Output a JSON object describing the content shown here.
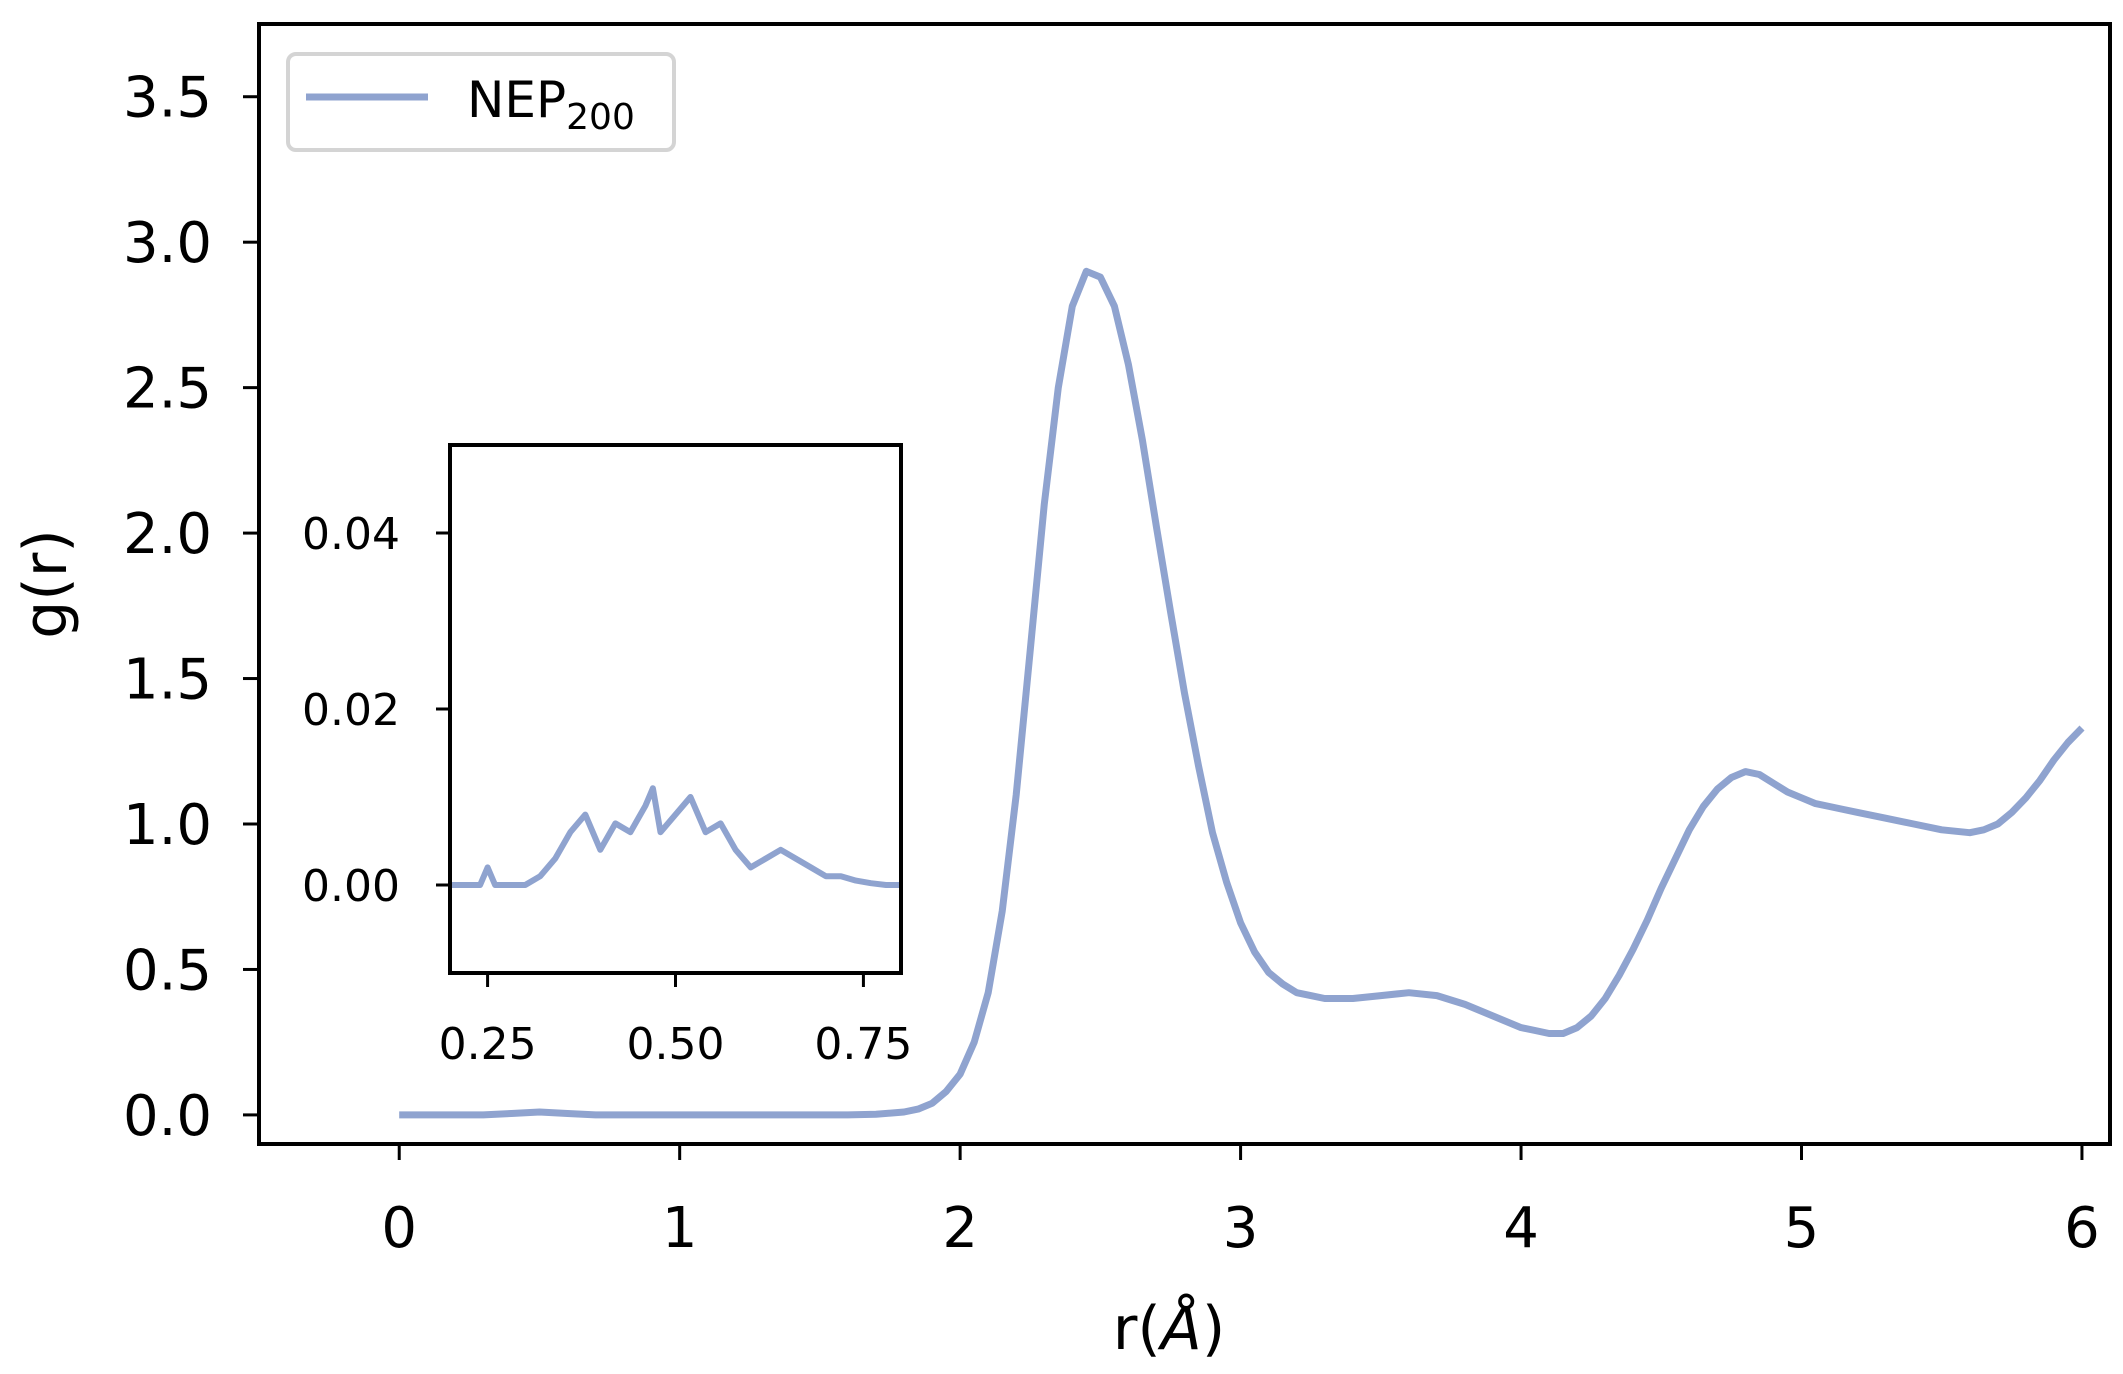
{
  "chart_data": [
    {
      "type": "line",
      "title": "",
      "xlabel_prefix": "r(",
      "xlabel_unit": "Å",
      "xlabel_suffix": ")",
      "ylabel": "g(r)",
      "xlim": [
        -0.5,
        6.1
      ],
      "ylim": [
        -0.1,
        3.75
      ],
      "xticks": [
        0,
        1,
        2,
        3,
        4,
        5,
        6
      ],
      "xtick_labels": [
        "0",
        "1",
        "2",
        "3",
        "4",
        "5",
        "6"
      ],
      "yticks": [
        0.0,
        0.5,
        1.0,
        1.5,
        2.0,
        2.5,
        3.0,
        3.5
      ],
      "ytick_labels": [
        "0.0",
        "0.5",
        "1.0",
        "1.5",
        "2.0",
        "2.5",
        "3.0",
        "3.5"
      ],
      "grid": false,
      "legend": {
        "position": "top-left",
        "entries": [
          {
            "name_main": "NEP",
            "name_sub": "200",
            "color": "#8fa3cf"
          }
        ]
      },
      "series": [
        {
          "name": "NEP200",
          "color": "#8fa3cf",
          "x": [
            0,
            0.1,
            0.2,
            0.3,
            0.4,
            0.5,
            0.6,
            0.7,
            0.8,
            1.0,
            1.2,
            1.4,
            1.6,
            1.7,
            1.8,
            1.85,
            1.9,
            1.95,
            2.0,
            2.05,
            2.1,
            2.15,
            2.2,
            2.25,
            2.3,
            2.35,
            2.4,
            2.45,
            2.5,
            2.55,
            2.6,
            2.65,
            2.7,
            2.75,
            2.8,
            2.85,
            2.9,
            2.95,
            3.0,
            3.05,
            3.1,
            3.15,
            3.2,
            3.25,
            3.3,
            3.35,
            3.4,
            3.5,
            3.6,
            3.7,
            3.8,
            3.9,
            4.0,
            4.05,
            4.1,
            4.15,
            4.2,
            4.25,
            4.3,
            4.35,
            4.4,
            4.45,
            4.5,
            4.55,
            4.6,
            4.65,
            4.7,
            4.75,
            4.8,
            4.85,
            4.9,
            4.95,
            5.0,
            5.05,
            5.1,
            5.15,
            5.2,
            5.3,
            5.4,
            5.5,
            5.6,
            5.65,
            5.7,
            5.75,
            5.8,
            5.85,
            5.9,
            5.95,
            6.0
          ],
          "y": [
            0.0,
            0.0,
            0.0,
            0.0,
            0.005,
            0.01,
            0.005,
            0.0,
            0.0,
            0.0,
            0.0,
            0.0,
            0.0,
            0.002,
            0.01,
            0.02,
            0.04,
            0.08,
            0.14,
            0.25,
            0.42,
            0.7,
            1.1,
            1.6,
            2.1,
            2.5,
            2.78,
            2.9,
            2.88,
            2.78,
            2.58,
            2.32,
            2.02,
            1.73,
            1.45,
            1.2,
            0.97,
            0.8,
            0.66,
            0.56,
            0.49,
            0.45,
            0.42,
            0.41,
            0.4,
            0.4,
            0.4,
            0.41,
            0.42,
            0.41,
            0.38,
            0.34,
            0.3,
            0.29,
            0.28,
            0.28,
            0.3,
            0.34,
            0.4,
            0.48,
            0.57,
            0.67,
            0.78,
            0.88,
            0.98,
            1.06,
            1.12,
            1.16,
            1.18,
            1.17,
            1.14,
            1.11,
            1.09,
            1.07,
            1.06,
            1.05,
            1.04,
            1.02,
            1.0,
            0.98,
            0.97,
            0.98,
            1.0,
            1.04,
            1.09,
            1.15,
            1.22,
            1.28,
            1.33
          ]
        }
      ]
    },
    {
      "type": "line",
      "role": "inset",
      "xlim": [
        0.2,
        0.8
      ],
      "ylim": [
        -0.01,
        0.05
      ],
      "xticks": [
        0.25,
        0.5,
        0.75
      ],
      "xtick_labels": [
        "0.25",
        "0.50",
        "0.75"
      ],
      "yticks": [
        0.0,
        0.02,
        0.04
      ],
      "ytick_labels": [
        "0.00",
        "0.02",
        "0.04"
      ],
      "series": [
        {
          "name": "NEP200",
          "color": "#8fa3cf",
          "x": [
            0.2,
            0.22,
            0.24,
            0.25,
            0.26,
            0.28,
            0.3,
            0.32,
            0.34,
            0.36,
            0.38,
            0.4,
            0.42,
            0.44,
            0.46,
            0.47,
            0.48,
            0.5,
            0.52,
            0.54,
            0.56,
            0.58,
            0.6,
            0.62,
            0.64,
            0.66,
            0.68,
            0.7,
            0.72,
            0.74,
            0.76,
            0.78,
            0.8
          ],
          "y": [
            0.0,
            0.0,
            0.0,
            0.002,
            0.0,
            0.0,
            0.0,
            0.001,
            0.003,
            0.006,
            0.008,
            0.004,
            0.007,
            0.006,
            0.009,
            0.011,
            0.006,
            0.008,
            0.01,
            0.006,
            0.007,
            0.004,
            0.002,
            0.003,
            0.004,
            0.003,
            0.002,
            0.001,
            0.001,
            0.0005,
            0.0002,
            0.0,
            0.0
          ]
        }
      ]
    }
  ]
}
